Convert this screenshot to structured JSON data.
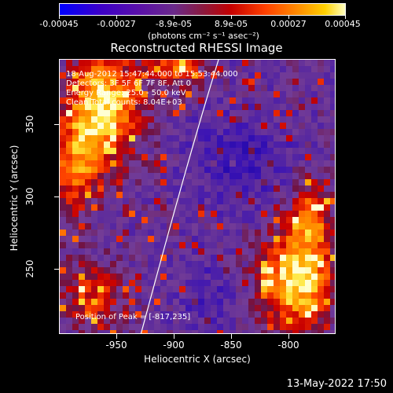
{
  "colorbar": {
    "tick_labels": [
      "-0.00045",
      "-0.00027",
      "-8.9e-05",
      "8.9e-05",
      "0.00027",
      "0.00045"
    ],
    "units": "(photons cm⁻² s⁻¹ asec⁻²)"
  },
  "title": "Reconstructed RHESSI Image",
  "annotations": {
    "time_range": "18-Aug-2012 15:47:44.000 to 15:53:44.000",
    "detectors": "Detectors: 3F 5F 6F 7F 8F, Att 0",
    "energy": "Energy Range: 25.0 - 50.0 keV",
    "clean": "Clean    Total counts: 8.04E+03",
    "peak": "Position of Peak = [-817,235]"
  },
  "x_axis": {
    "title": "Heliocentric X (arcsec)",
    "tick_labels": [
      "-950",
      "-900",
      "-850",
      "-800"
    ]
  },
  "y_axis": {
    "title": "Heliocentric Y (arcsec)",
    "tick_labels": [
      "250",
      "300",
      "350"
    ]
  },
  "footer": {
    "timestamp": "13-May-2022 17:50"
  }
}
